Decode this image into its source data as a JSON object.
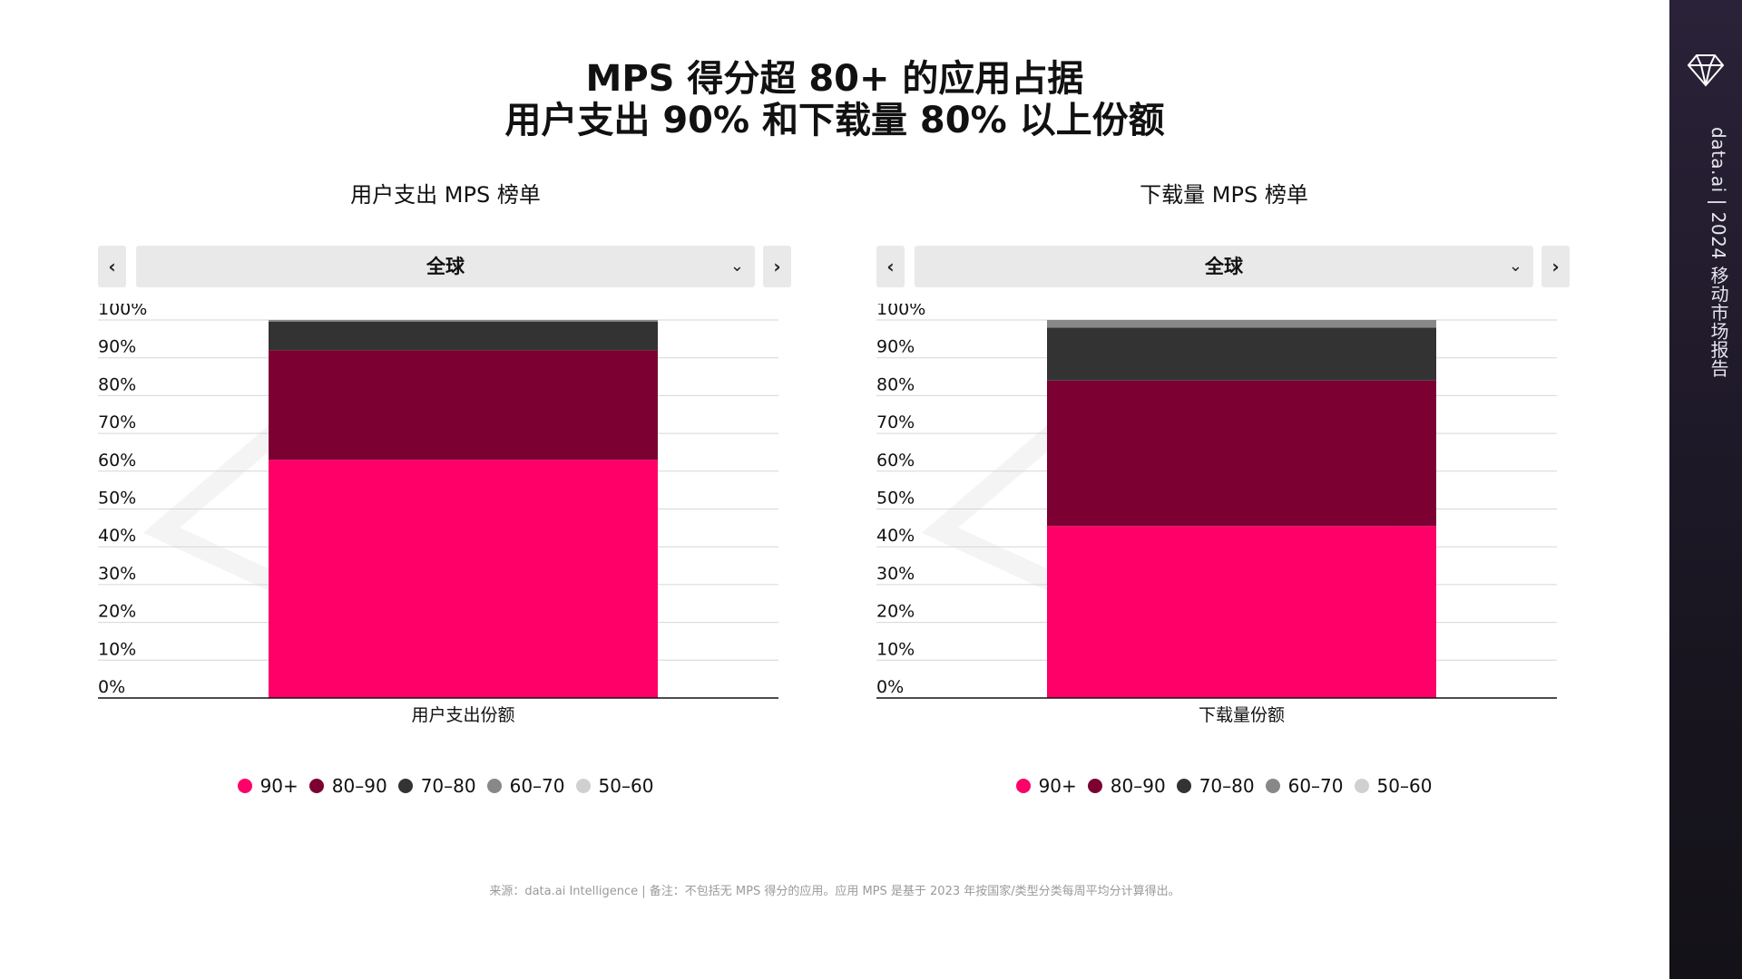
{
  "title": {
    "line1": "MPS 得分超 80+ 的应用占据",
    "line2": "用户支出 90% 和下载量 80% 以上份额"
  },
  "colors": {
    "90+": "#ff0068",
    "80-90": "#7d0032",
    "70-80": "#333333",
    "60-70": "#888888",
    "50-60": "#d0d0d0"
  },
  "panels": [
    {
      "title": "用户支出 MPS 榜单",
      "region": "全球",
      "prev_icon": "chevron-left-icon",
      "next_icon": "chevron-right-icon"
    },
    {
      "title": "下载量 MPS 榜单",
      "region": "全球",
      "prev_icon": "chevron-left-icon",
      "next_icon": "chevron-right-icon"
    }
  ],
  "legend": [
    "90+",
    "80–90",
    "70–80",
    "60–70",
    "50–60"
  ],
  "chart_data": [
    {
      "type": "bar",
      "stacked": true,
      "categories": [
        "用户支出份额"
      ],
      "ylim": [
        0,
        100
      ],
      "y_ticks": [
        "0%",
        "10%",
        "20%",
        "30%",
        "40%",
        "50%",
        "60%",
        "70%",
        "80%",
        "90%",
        "100%"
      ],
      "grid": true,
      "series": [
        {
          "name": "90+",
          "values": [
            63
          ]
        },
        {
          "name": "80–90",
          "values": [
            29
          ]
        },
        {
          "name": "70–80",
          "values": [
            7.6
          ]
        },
        {
          "name": "60–70",
          "values": [
            0.4
          ]
        },
        {
          "name": "50–60",
          "values": [
            0
          ]
        }
      ]
    },
    {
      "type": "bar",
      "stacked": true,
      "categories": [
        "下载量份额"
      ],
      "ylim": [
        0,
        100
      ],
      "y_ticks": [
        "0%",
        "10%",
        "20%",
        "30%",
        "40%",
        "50%",
        "60%",
        "70%",
        "80%",
        "90%",
        "100%"
      ],
      "grid": true,
      "series": [
        {
          "name": "90+",
          "values": [
            45.5
          ]
        },
        {
          "name": "80–90",
          "values": [
            38.5
          ]
        },
        {
          "name": "70–80",
          "values": [
            14
          ]
        },
        {
          "name": "60–70",
          "values": [
            2
          ]
        },
        {
          "name": "50–60",
          "values": [
            0
          ]
        }
      ]
    }
  ],
  "source": "来源：data.ai Intelligence | 备注：不包括无 MPS 得分的应用。应用 MPS 是基于 2023 年按国家/类型分类每周平均分计算得出。",
  "sidebar": {
    "brand_icon": "diamond-logo-icon",
    "text": "data.ai | 2024 移动市场报告"
  }
}
